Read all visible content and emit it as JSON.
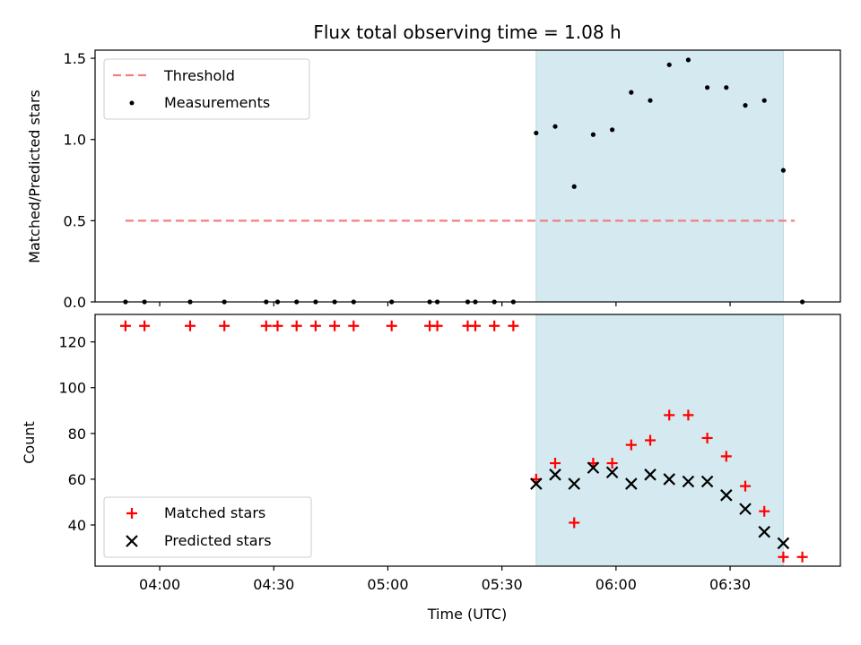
{
  "chart_data": [
    {
      "type": "scatter",
      "panel": "top",
      "title": "Flux total observing time = 1.08 h",
      "ylabel": "Matched/Predicted stars",
      "xlabel": "",
      "ylim": [
        0,
        1.55
      ],
      "yticks": [
        "0.0",
        "0.5",
        "1.0",
        "1.5"
      ],
      "ytick_values": [
        0,
        0.5,
        1.0,
        1.5
      ],
      "shaded_span_minutes": [
        339,
        404
      ],
      "shade_color": "#d4eaf0",
      "threshold": {
        "name": "Threshold",
        "value": 0.5,
        "x_range_minutes": [
          231,
          407
        ],
        "color": "#f08080"
      },
      "legend": [
        "Threshold",
        "Measurements"
      ],
      "legend_position": "upper-left",
      "series": [
        {
          "name": "Measurements",
          "color": "#000000",
          "x_minutes": [
            231,
            236,
            248,
            257,
            268,
            271,
            276,
            281,
            286,
            291,
            301,
            311,
            313,
            321,
            323,
            328,
            333,
            339,
            344,
            349,
            354,
            359,
            364,
            369,
            374,
            379,
            384,
            389,
            394,
            399,
            404,
            409
          ],
          "y": [
            0,
            0,
            0,
            0,
            0,
            0,
            0,
            0,
            0,
            0,
            0,
            0,
            0,
            0,
            0,
            0,
            0,
            1.04,
            1.08,
            0.71,
            1.03,
            1.06,
            1.29,
            1.24,
            1.46,
            1.49,
            1.32,
            1.32,
            1.21,
            1.24,
            0.81,
            0
          ]
        }
      ]
    },
    {
      "type": "scatter",
      "panel": "bottom",
      "title": "",
      "ylabel": "Count",
      "xlabel": "Time (UTC)",
      "ylim": [
        22,
        132
      ],
      "yticks": [
        "40",
        "60",
        "80",
        "100",
        "120"
      ],
      "ytick_values": [
        40,
        60,
        80,
        100,
        120
      ],
      "xticks": [
        "04:00",
        "04:30",
        "05:00",
        "05:30",
        "06:00",
        "06:30"
      ],
      "xtick_minutes": [
        240,
        270,
        300,
        330,
        360,
        390
      ],
      "xlim_minutes": [
        223,
        419
      ],
      "shaded_span_minutes": [
        339,
        404
      ],
      "legend": [
        "Matched stars",
        "Predicted stars"
      ],
      "legend_position": "lower-left",
      "series": [
        {
          "name": "Matched stars",
          "marker": "+",
          "color": "#ff0000",
          "x_minutes": [
            231,
            236,
            248,
            257,
            268,
            271,
            276,
            281,
            286,
            291,
            301,
            311,
            313,
            321,
            323,
            328,
            333,
            339,
            344,
            349,
            354,
            359,
            364,
            369,
            374,
            379,
            384,
            389,
            394,
            399,
            404,
            409
          ],
          "y": [
            127,
            127,
            127,
            127,
            127,
            127,
            127,
            127,
            127,
            127,
            127,
            127,
            127,
            127,
            127,
            127,
            127,
            60,
            67,
            41,
            67,
            67,
            75,
            77,
            88,
            88,
            78,
            70,
            57,
            46,
            26,
            26
          ]
        },
        {
          "name": "Predicted stars",
          "marker": "x",
          "color": "#000000",
          "x_minutes": [
            339,
            344,
            349,
            354,
            359,
            364,
            369,
            374,
            379,
            384,
            389,
            394,
            399,
            404
          ],
          "y": [
            58,
            62,
            58,
            65,
            63,
            58,
            62,
            60,
            59,
            59,
            53,
            47,
            37,
            32
          ]
        }
      ]
    }
  ]
}
